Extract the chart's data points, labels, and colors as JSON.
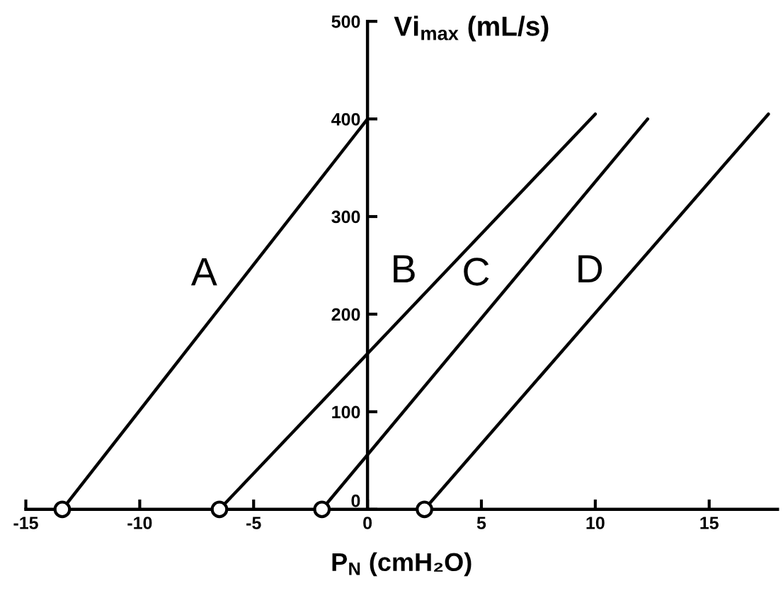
{
  "chart_data": {
    "type": "line",
    "xlabel": "P$_{N}$ (cmH₂O)",
    "ylabel": "Vi$_{max}$ (mL/s)",
    "xlim": [
      -15,
      18
    ],
    "ylim": [
      0,
      500
    ],
    "xticks": [
      -15,
      -10,
      -5,
      0,
      5,
      10,
      15
    ],
    "yticks": [
      0,
      100,
      200,
      300,
      400,
      500
    ],
    "marker": "none",
    "line_style": "solid",
    "series": [
      {
        "name": "A",
        "color": "#000000",
        "x": [
          -13.4,
          0
        ],
        "values": [
          0,
          400
        ]
      },
      {
        "name": "B",
        "color": "#000000",
        "x": [
          -6.5,
          10
        ],
        "values": [
          0,
          405
        ]
      },
      {
        "name": "C",
        "color": "#000000",
        "x": [
          -2,
          12.3
        ],
        "values": [
          0,
          400
        ]
      },
      {
        "name": "D",
        "color": "#000000",
        "x": [
          2.5,
          17.6
        ],
        "values": [
          0,
          405
        ]
      },
      {
        "type": "scatter",
        "marker": "circle",
        "color": "#000000",
        "x": [
          -13.4,
          -6.5,
          -2,
          2.5
        ],
        "values": [
          0,
          0,
          0,
          0
        ]
      }
    ]
  }
}
